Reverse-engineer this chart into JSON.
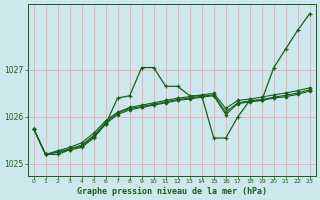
{
  "title": "Graphe pression niveau de la mer (hPa)",
  "bg_color": "#cce8ec",
  "grid_color_v": "#f0a0a0",
  "grid_color_h": "#f0a0a0",
  "line_color": "#1a5e1a",
  "ylim": [
    1024.75,
    1028.4
  ],
  "xlim": [
    -0.5,
    23.5
  ],
  "yticks": [
    1025,
    1026,
    1027
  ],
  "xticks": [
    0,
    1,
    2,
    3,
    4,
    5,
    6,
    7,
    8,
    9,
    10,
    11,
    12,
    13,
    14,
    15,
    16,
    17,
    18,
    19,
    20,
    21,
    22,
    23
  ],
  "series0": [
    1025.75,
    1025.2,
    1025.2,
    1025.3,
    1025.35,
    1025.55,
    1025.85,
    1026.4,
    1026.45,
    1027.05,
    1027.05,
    1026.65,
    1026.65,
    1026.45,
    1026.45,
    1025.55,
    1025.55,
    1026.0,
    1026.35,
    1026.35,
    1027.05,
    1027.45,
    1027.85,
    1028.2
  ],
  "series1": [
    1025.75,
    1025.2,
    1025.25,
    1025.3,
    1025.38,
    1025.58,
    1025.85,
    1026.05,
    1026.15,
    1026.2,
    1026.25,
    1026.3,
    1026.35,
    1026.38,
    1026.42,
    1026.45,
    1026.05,
    1026.28,
    1026.32,
    1026.35,
    1026.4,
    1026.43,
    1026.48,
    1026.55
  ],
  "series2": [
    1025.75,
    1025.2,
    1025.25,
    1025.32,
    1025.4,
    1025.6,
    1025.88,
    1026.08,
    1026.18,
    1026.22,
    1026.27,
    1026.32,
    1026.37,
    1026.4,
    1026.44,
    1026.47,
    1026.1,
    1026.3,
    1026.34,
    1026.37,
    1026.42,
    1026.46,
    1026.51,
    1026.58
  ],
  "series3": [
    1025.75,
    1025.2,
    1025.28,
    1025.35,
    1025.45,
    1025.65,
    1025.92,
    1026.1,
    1026.2,
    1026.25,
    1026.3,
    1026.35,
    1026.4,
    1026.43,
    1026.47,
    1026.5,
    1026.18,
    1026.35,
    1026.38,
    1026.42,
    1026.47,
    1026.51,
    1026.56,
    1026.62
  ]
}
